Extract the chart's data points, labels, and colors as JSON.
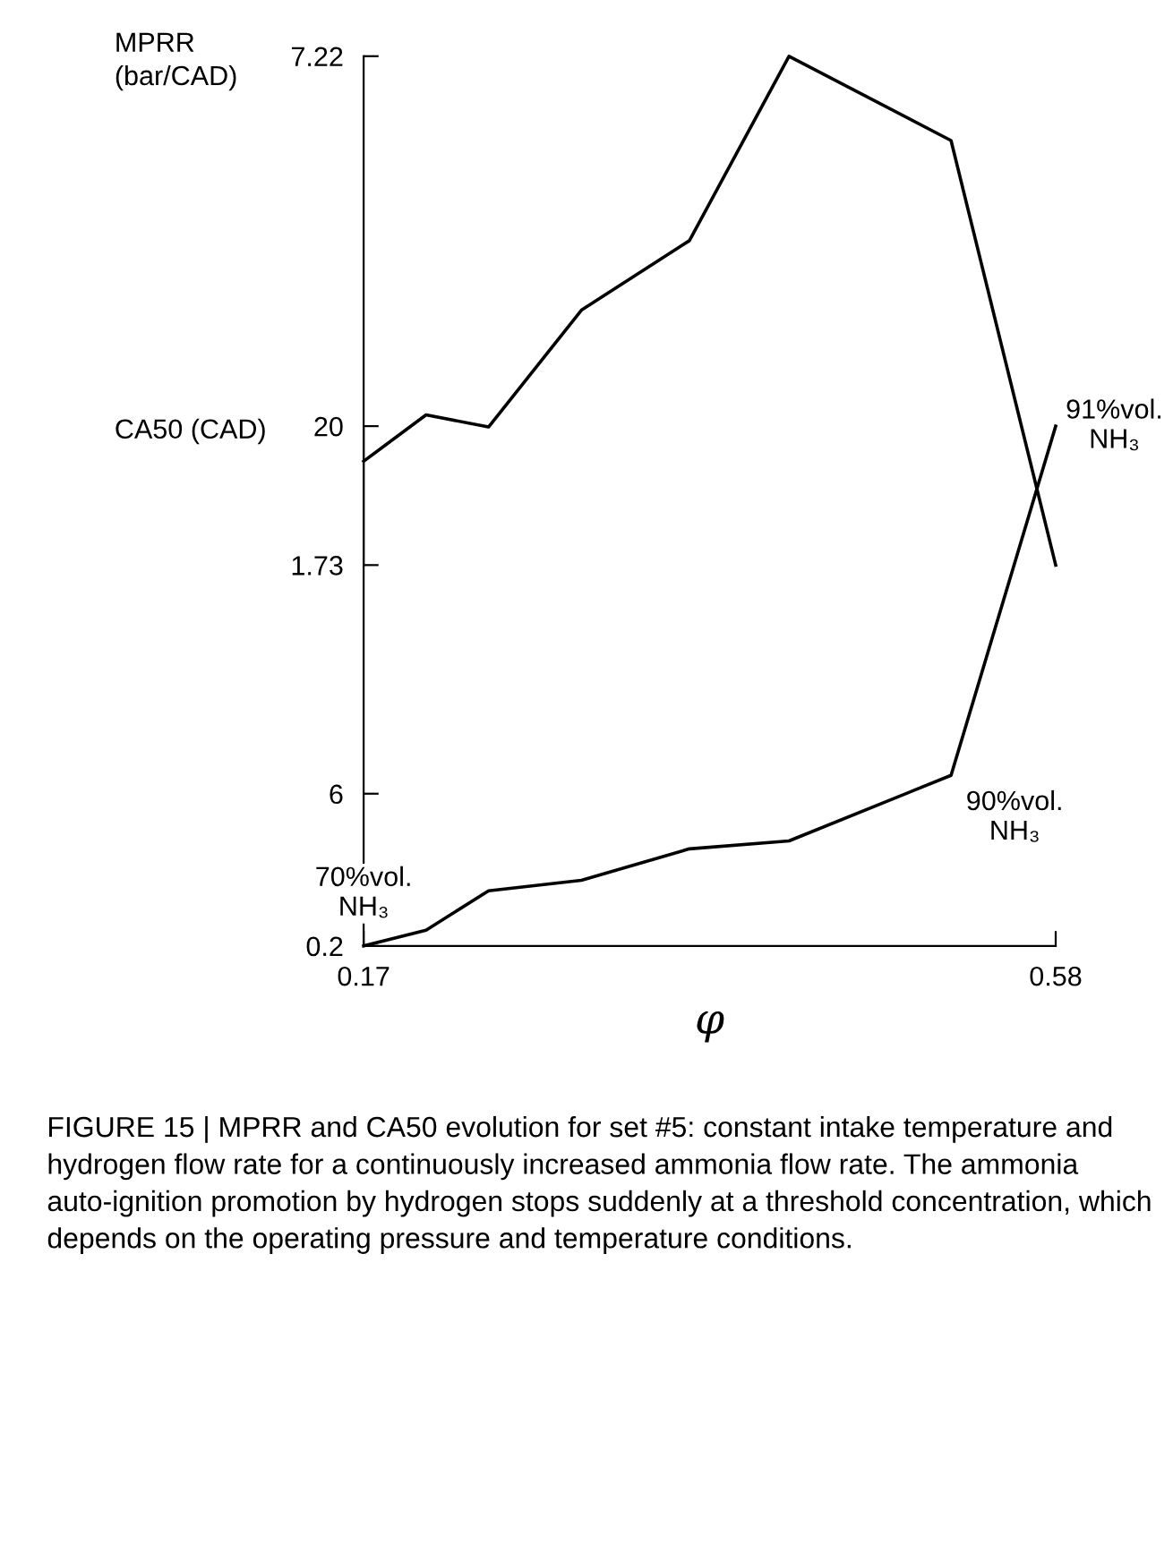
{
  "chart_data": [
    {
      "type": "line",
      "ylabel": "MPRR\n(bar/CAD)",
      "x": [
        0.17,
        0.207,
        0.244,
        0.299,
        0.363,
        0.422,
        0.518,
        0.58
      ],
      "series": [
        {
          "color": "#000000",
          "values": [
            2.85,
            3.35,
            3.22,
            4.48,
            5.23,
            7.22,
            6.31,
            1.73
          ]
        }
      ],
      "xlim": [
        0.17,
        0.58
      ],
      "ylim": [
        1.73,
        7.22
      ],
      "yticks": [
        1.73,
        7.22
      ],
      "tick_labels": "y",
      "grid": false,
      "legend": false
    },
    {
      "type": "line",
      "ylabel": "CA50 (CAD)",
      "xlabel": "φ",
      "x": [
        0.17,
        0.207,
        0.244,
        0.299,
        0.363,
        0.422,
        0.518,
        0.58
      ],
      "series": [
        {
          "color": "#000000",
          "values": [
            0.2,
            0.8,
            2.3,
            2.7,
            3.9,
            4.2,
            6.7,
            20
          ]
        }
      ],
      "xlim": [
        0.17,
        0.58
      ],
      "ylim": [
        0.2,
        20
      ],
      "xticks": [
        0.17,
        0.58
      ],
      "yticks": [
        0.2,
        6,
        20
      ],
      "grid": false,
      "legend": false,
      "annotations": [
        {
          "text": "70%vol.\nNH₃",
          "x": 0.17,
          "y": 0.2
        },
        {
          "text": "90%vol.\nNH₃",
          "x": 0.518,
          "y": 6.7
        },
        {
          "text": "91%vol.\nNH₃",
          "x": 0.58,
          "y": 20
        },
        "FIGURE 15 | MPRR and CA50 evolution for set #5: constant intake temperature and hydrogen flow rate for a continuously increased ammonia flow rate. The ammonia auto-ignition promotion by hydrogen stops suddenly at a threshold concentration, which depends on the operating pressure and temperature conditions."
      ]
    }
  ]
}
